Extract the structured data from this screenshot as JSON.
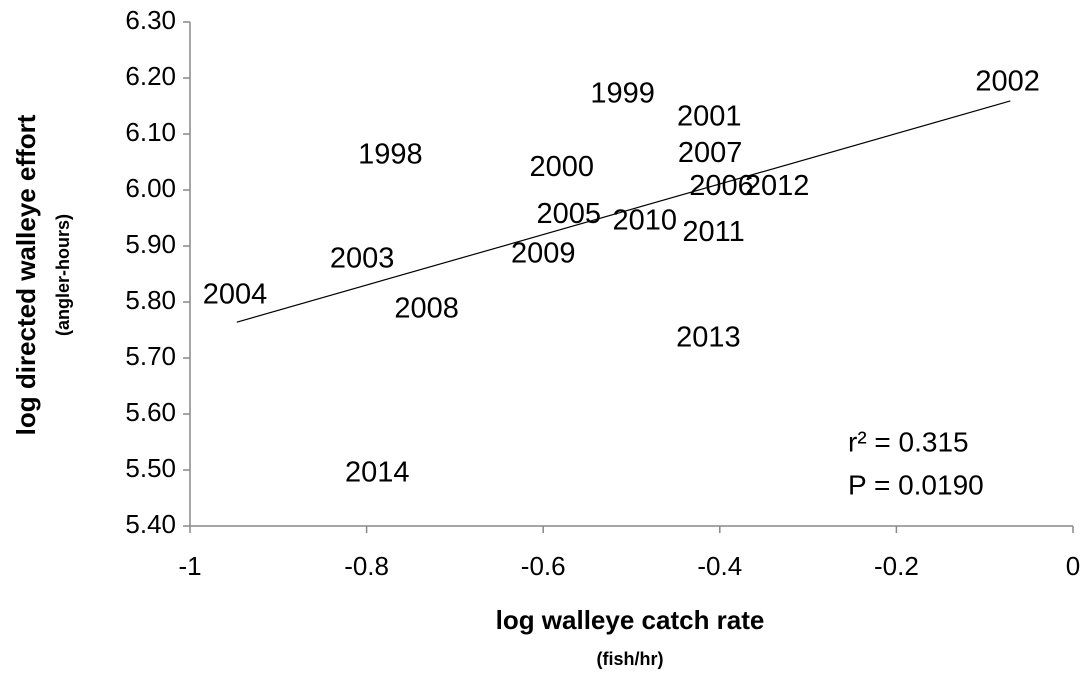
{
  "chart_data": {
    "type": "scatter",
    "xlabel": "log walleye catch rate",
    "xlabel_sub": "(fish/hr)",
    "ylabel": "log directed walleye effort",
    "ylabel_sub": "(angler-hours)",
    "labels": [
      "1998",
      "1999",
      "2000",
      "2001",
      "2002",
      "2003",
      "2004",
      "2005",
      "2006",
      "2007",
      "2008",
      "2009",
      "2010",
      "2011",
      "2012",
      "2013",
      "2014"
    ],
    "x": [
      -0.773,
      -0.51,
      -0.579,
      -0.412,
      -0.074,
      -0.805,
      -0.949,
      -0.571,
      -0.398,
      -0.411,
      -0.732,
      -0.6,
      -0.485,
      -0.407,
      -0.335,
      -0.413,
      -0.788
    ],
    "values": [
      6.061,
      6.17,
      6.039,
      6.129,
      6.191,
      5.875,
      5.811,
      5.955,
      6.005,
      6.064,
      5.786,
      5.884,
      5.943,
      5.923,
      6.005,
      5.734,
      5.493
    ],
    "trendline": {
      "x": [
        -0.947,
        -0.071
      ],
      "y": [
        5.764,
        6.159
      ]
    },
    "annotations": [
      "r² = 0.315",
      "P = 0.0190"
    ],
    "xlim": [
      -1,
      0
    ],
    "xticks": [
      -1,
      -0.8,
      -0.6,
      -0.4,
      -0.2,
      0
    ],
    "ylim": [
      5.4,
      6.3
    ],
    "yticks": [
      {
        "value": 5.4,
        "label": "5.40"
      },
      {
        "value": 5.5,
        "label": "5.50"
      },
      {
        "value": 5.6,
        "label": "5.60"
      },
      {
        "value": 5.7,
        "label": "5.70"
      },
      {
        "value": 5.8,
        "label": "5.80"
      },
      {
        "value": 5.9,
        "label": "5.90"
      },
      {
        "value": 6.0,
        "label": "6.00"
      },
      {
        "value": 6.1,
        "label": "6.10"
      },
      {
        "value": 6.2,
        "label": "6.20"
      },
      {
        "value": 6.3,
        "label": "6.30"
      }
    ],
    "grid": false
  }
}
